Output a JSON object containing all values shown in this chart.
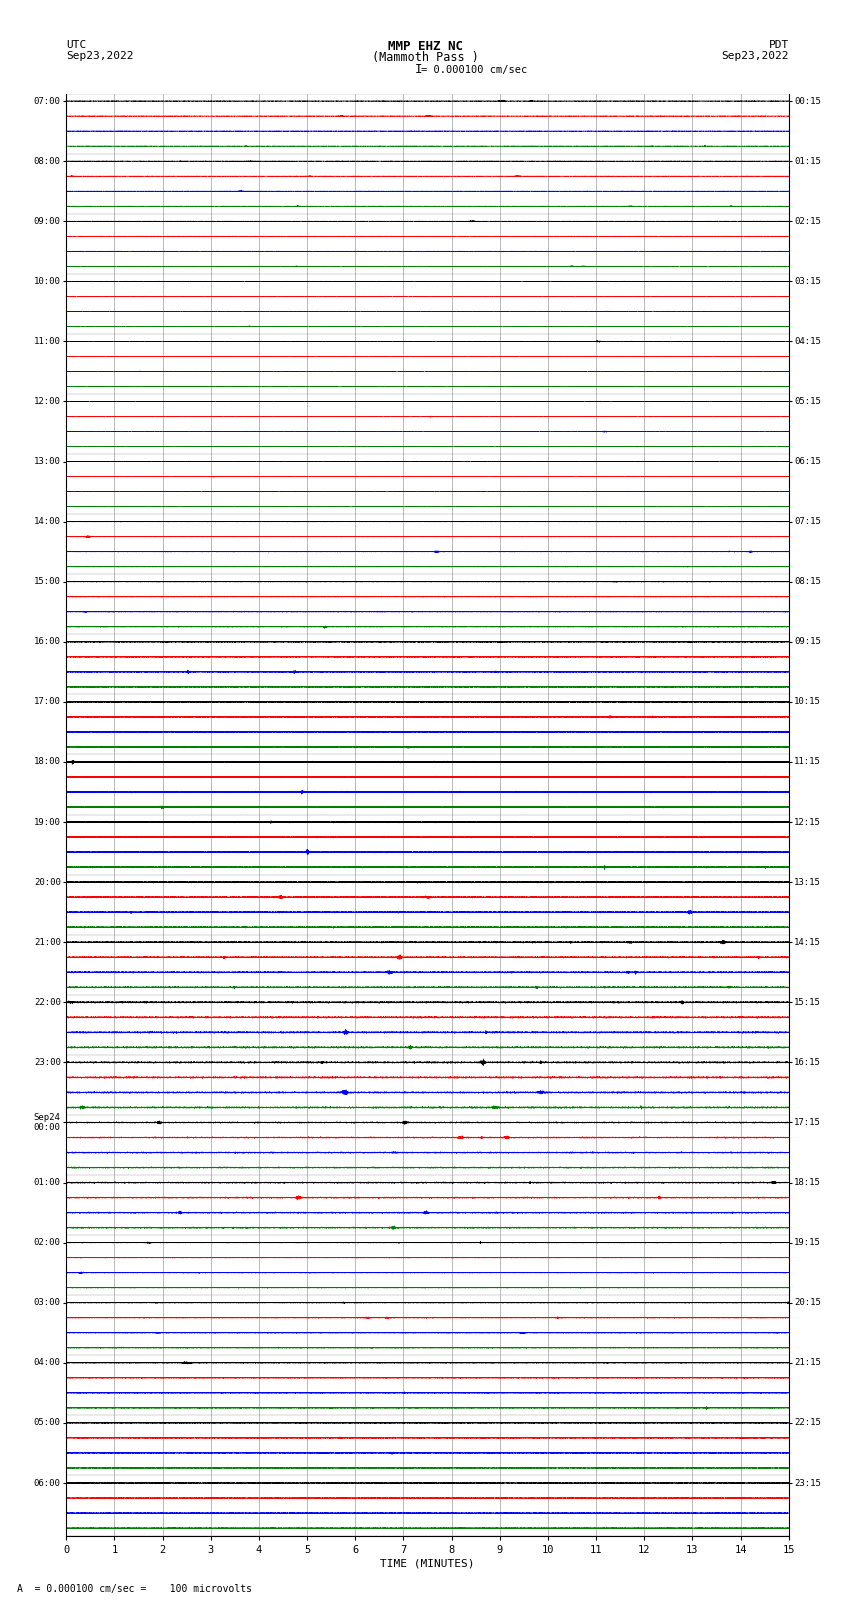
{
  "title_line1": "MMP EHZ NC",
  "title_line2": "(Mammoth Pass )",
  "scale_label": "I = 0.000100 cm/sec",
  "left_header_line1": "UTC",
  "left_header_line2": "Sep23,2022",
  "right_header_line1": "PDT",
  "right_header_line2": "Sep23,2022",
  "bottom_label": "TIME (MINUTES)",
  "bottom_note": "A  = 0.000100 cm/sec =    100 microvolts",
  "utc_labels": [
    "07:00",
    "08:00",
    "09:00",
    "10:00",
    "11:00",
    "12:00",
    "13:00",
    "14:00",
    "15:00",
    "16:00",
    "17:00",
    "18:00",
    "19:00",
    "20:00",
    "21:00",
    "22:00",
    "23:00",
    "Sep24\n00:00",
    "01:00",
    "02:00",
    "03:00",
    "04:00",
    "05:00",
    "06:00"
  ],
  "pdt_labels": [
    "00:15",
    "01:15",
    "02:15",
    "03:15",
    "04:15",
    "05:15",
    "06:15",
    "07:15",
    "08:15",
    "09:15",
    "10:15",
    "11:15",
    "12:15",
    "13:15",
    "14:15",
    "15:15",
    "16:15",
    "17:15",
    "18:15",
    "19:15",
    "20:15",
    "21:15",
    "22:15",
    "23:15"
  ],
  "n_groups": 24,
  "traces_per_group": 4,
  "trace_colors": [
    "black",
    "red",
    "blue",
    "green"
  ],
  "n_minutes": 15,
  "sample_rate": 100,
  "background_color": "white",
  "grid_color": "#888888",
  "fig_width": 8.5,
  "fig_height": 16.13
}
